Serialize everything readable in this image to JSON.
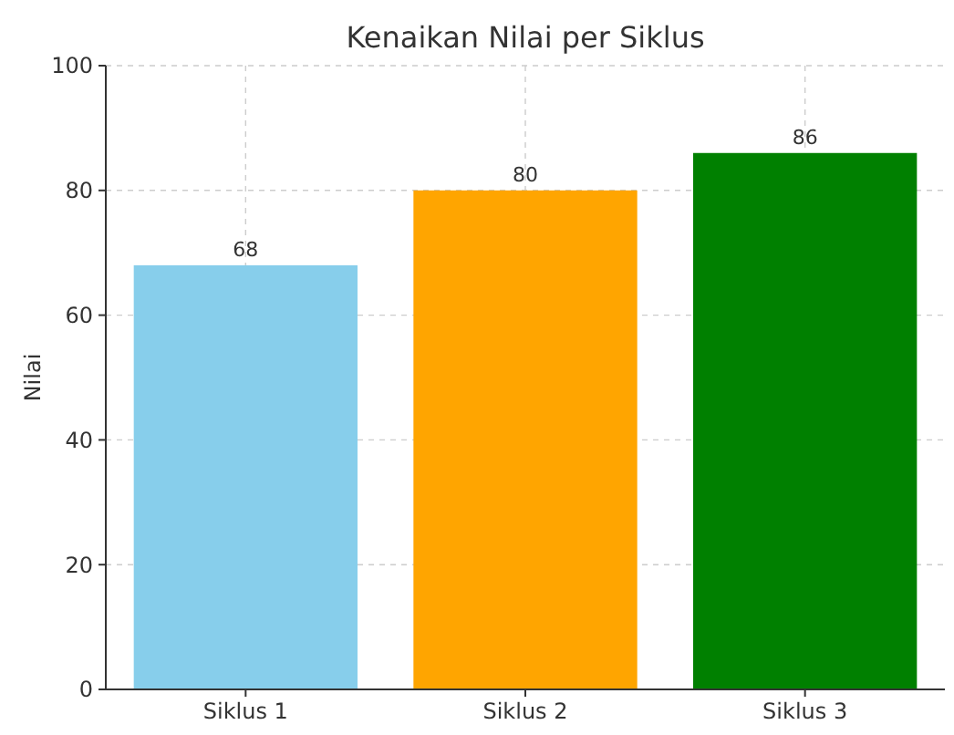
{
  "chart_data": {
    "type": "bar",
    "title": "Kenaikan Nilai per Siklus",
    "ylabel": "Nilai",
    "categories": [
      "Siklus 1",
      "Siklus 2",
      "Siklus 3"
    ],
    "values": [
      68,
      80,
      86
    ],
    "colors": [
      "#87ceeb",
      "#ffa500",
      "#008000"
    ],
    "ylim": [
      0,
      100
    ],
    "yticks": [
      0,
      20,
      40,
      60,
      80,
      100
    ],
    "grid": true,
    "data_labels": true
  }
}
